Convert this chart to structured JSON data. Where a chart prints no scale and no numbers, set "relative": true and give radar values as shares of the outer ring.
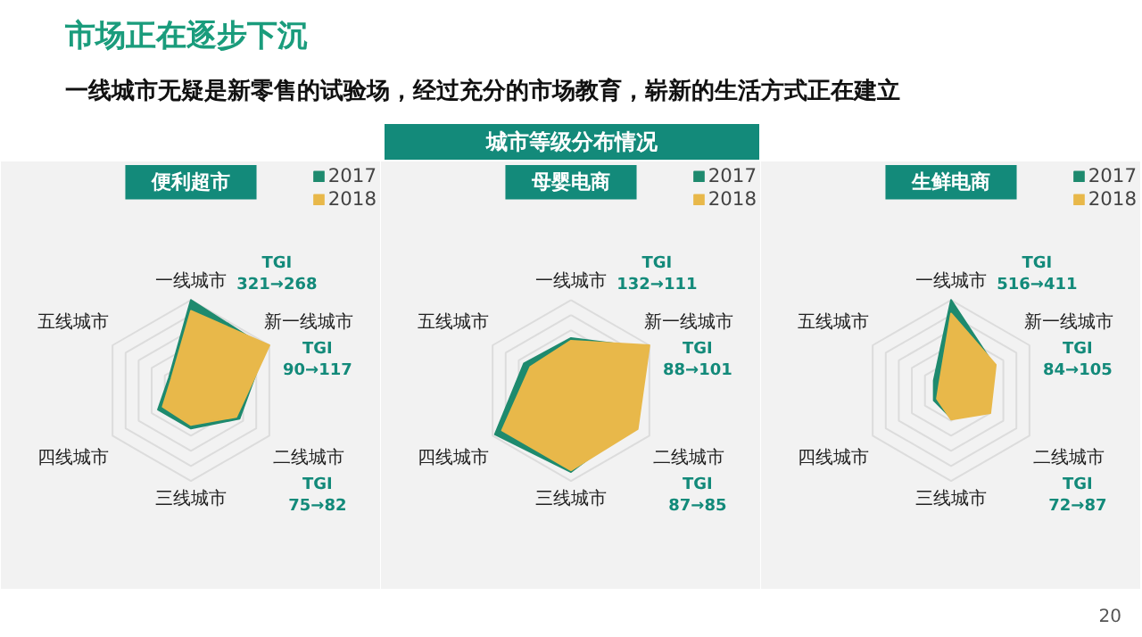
{
  "chart_data": [
    {
      "type": "other",
      "title": "市场正在逐步下沉",
      "subtitle": "一线城市无疑是新零售的试验场，经过充分的市场教育，崭新的生活方式正在建立",
      "annotations": [
        "城市等级分布情况",
        "20"
      ]
    },
    {
      "type": "radar",
      "title": "便利超市",
      "categories": [
        "一线城市",
        "新一线城市",
        "二线城市",
        "三线城市",
        "四线城市",
        "五线城市"
      ],
      "relative": true,
      "grid": true,
      "legend": "top right",
      "series": [
        {
          "name": "2017",
          "color": "#1e8a6e",
          "values": [
            1.0,
            0.95,
            0.62,
            0.42,
            0.42,
            0.28
          ]
        },
        {
          "name": "2018",
          "color": "#e8b84a",
          "values": [
            0.88,
            1.0,
            0.58,
            0.38,
            0.36,
            0.25
          ]
        }
      ],
      "annotations": [
        {
          "text": "TGI\n321→268",
          "x": "一线城市"
        },
        {
          "text": "TGI\n90→117",
          "x": "新一线城市"
        },
        {
          "text": "TGI\n75→82",
          "x": "二线城市"
        }
      ]
    },
    {
      "type": "radar",
      "title": "母婴电商",
      "categories": [
        "一线城市",
        "新一线城市",
        "二线城市",
        "三线城市",
        "四线城市",
        "五线城市"
      ],
      "relative": true,
      "grid": true,
      "legend": "top right",
      "series": [
        {
          "name": "2017",
          "color": "#1e8a6e",
          "values": [
            0.58,
            0.95,
            0.78,
            0.9,
            0.97,
            0.6
          ]
        },
        {
          "name": "2018",
          "color": "#e8b84a",
          "values": [
            0.55,
            1.0,
            0.85,
            0.88,
            0.88,
            0.52
          ]
        }
      ],
      "annotations": [
        {
          "text": "TGI\n132→111",
          "x": "一线城市"
        },
        {
          "text": "TGI\n88→101",
          "x": "新一线城市"
        },
        {
          "text": "TGI\n87→85",
          "x": "二线城市"
        }
      ]
    },
    {
      "type": "radar",
      "title": "生鲜电商",
      "categories": [
        "一线城市",
        "新一线城市",
        "二线城市",
        "三线城市",
        "四线城市",
        "五线城市"
      ],
      "relative": true,
      "grid": true,
      "legend": "top right",
      "series": [
        {
          "name": "2017",
          "color": "#1e8a6e",
          "values": [
            1.0,
            0.55,
            0.48,
            0.3,
            0.22,
            0.22
          ]
        },
        {
          "name": "2018",
          "color": "#e8b84a",
          "values": [
            0.85,
            0.57,
            0.5,
            0.32,
            0.18,
            0.15
          ]
        }
      ],
      "annotations": [
        {
          "text": "TGI\n516→411",
          "x": "一线城市"
        },
        {
          "text": "TGI\n84→105",
          "x": "新一线城市"
        },
        {
          "text": "TGI\n72→87",
          "x": "二线城市"
        }
      ]
    }
  ]
}
